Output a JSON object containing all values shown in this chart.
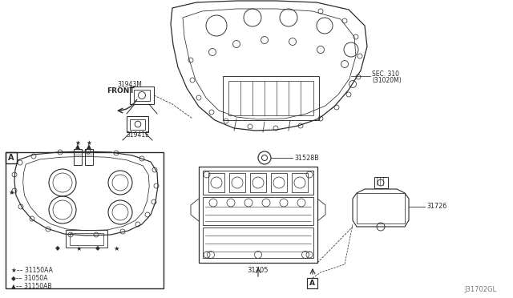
{
  "bg_color": "#ffffff",
  "lc": "#2a2a2a",
  "diagram_id": "J31702GL",
  "box_label": "A",
  "labels": {
    "front": "FRONT",
    "sec310_l1": "SEC. 310",
    "sec310_l2": "(31020M)",
    "p31943M": "31943M",
    "p31941E": "31941E",
    "p31528B": "31528B",
    "p31705": "31705",
    "p31726": "31726",
    "leg1": "★–– 31150AA",
    "leg2": "◆–– 31050A",
    "leg3": "▲–– 31150AB"
  }
}
